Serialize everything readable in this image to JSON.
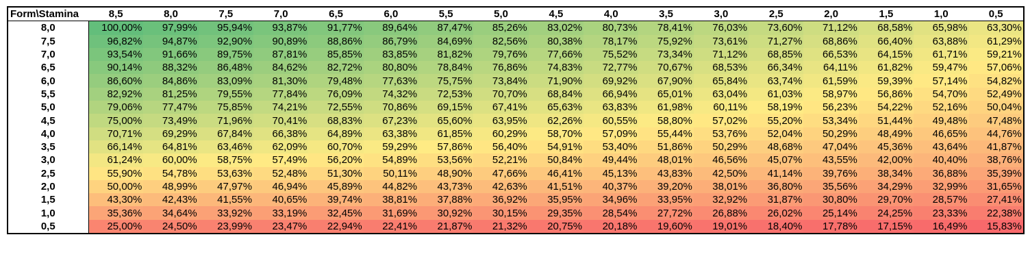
{
  "corner_label": "Form\\Stamina",
  "columns": [
    "8,5",
    "8,0",
    "7,5",
    "7,0",
    "6,5",
    "6,0",
    "5,5",
    "5,0",
    "4,5",
    "4,0",
    "3,5",
    "3,0",
    "2,5",
    "2,0",
    "1,5",
    "1,0",
    "0,5"
  ],
  "rows": [
    {
      "label": "8,0",
      "values": [
        "100,00%",
        "97,99%",
        "95,94%",
        "93,87%",
        "91,77%",
        "89,64%",
        "87,47%",
        "85,26%",
        "83,02%",
        "80,73%",
        "78,41%",
        "76,03%",
        "73,60%",
        "71,12%",
        "68,58%",
        "65,98%",
        "63,30%"
      ]
    },
    {
      "label": "7,5",
      "values": [
        "96,82%",
        "94,87%",
        "92,90%",
        "90,89%",
        "88,86%",
        "86,79%",
        "84,69%",
        "82,56%",
        "80,38%",
        "78,17%",
        "75,92%",
        "73,61%",
        "71,27%",
        "68,86%",
        "66,40%",
        "63,88%",
        "61,29%"
      ]
    },
    {
      "label": "7,0",
      "values": [
        "93,54%",
        "91,66%",
        "89,75%",
        "87,81%",
        "85,85%",
        "83,85%",
        "81,82%",
        "79,76%",
        "77,66%",
        "75,52%",
        "73,34%",
        "71,12%",
        "68,85%",
        "66,53%",
        "64,15%",
        "61,71%",
        "59,21%"
      ]
    },
    {
      "label": "6,5",
      "values": [
        "90,14%",
        "88,32%",
        "86,48%",
        "84,62%",
        "82,72%",
        "80,80%",
        "78,84%",
        "76,86%",
        "74,83%",
        "72,77%",
        "70,67%",
        "68,53%",
        "66,34%",
        "64,11%",
        "61,82%",
        "59,47%",
        "57,06%"
      ]
    },
    {
      "label": "6,0",
      "values": [
        "86,60%",
        "84,86%",
        "83,09%",
        "81,30%",
        "79,48%",
        "77,63%",
        "75,75%",
        "73,84%",
        "71,90%",
        "69,92%",
        "67,90%",
        "65,84%",
        "63,74%",
        "61,59%",
        "59,39%",
        "57,14%",
        "54,82%"
      ]
    },
    {
      "label": "5,5",
      "values": [
        "82,92%",
        "81,25%",
        "79,55%",
        "77,84%",
        "76,09%",
        "74,32%",
        "72,53%",
        "70,70%",
        "68,84%",
        "66,94%",
        "65,01%",
        "63,04%",
        "61,03%",
        "58,97%",
        "56,86%",
        "54,70%",
        "52,49%"
      ]
    },
    {
      "label": "5,0",
      "values": [
        "79,06%",
        "77,47%",
        "75,85%",
        "74,21%",
        "72,55%",
        "70,86%",
        "69,15%",
        "67,41%",
        "65,63%",
        "63,83%",
        "61,98%",
        "60,11%",
        "58,19%",
        "56,23%",
        "54,22%",
        "52,16%",
        "50,04%"
      ]
    },
    {
      "label": "4,5",
      "values": [
        "75,00%",
        "73,49%",
        "71,96%",
        "70,41%",
        "68,83%",
        "67,23%",
        "65,60%",
        "63,95%",
        "62,26%",
        "60,55%",
        "58,80%",
        "57,02%",
        "55,20%",
        "53,34%",
        "51,44%",
        "49,48%",
        "47,48%"
      ]
    },
    {
      "label": "4,0",
      "values": [
        "70,71%",
        "69,29%",
        "67,84%",
        "66,38%",
        "64,89%",
        "63,38%",
        "61,85%",
        "60,29%",
        "58,70%",
        "57,09%",
        "55,44%",
        "53,76%",
        "52,04%",
        "50,29%",
        "48,49%",
        "46,65%",
        "44,76%"
      ]
    },
    {
      "label": "3,5",
      "values": [
        "66,14%",
        "64,81%",
        "63,46%",
        "62,09%",
        "60,70%",
        "59,29%",
        "57,86%",
        "56,40%",
        "54,91%",
        "53,40%",
        "51,86%",
        "50,29%",
        "48,68%",
        "47,04%",
        "45,36%",
        "43,64%",
        "41,87%"
      ]
    },
    {
      "label": "3,0",
      "values": [
        "61,24%",
        "60,00%",
        "58,75%",
        "57,49%",
        "56,20%",
        "54,89%",
        "53,56%",
        "52,21%",
        "50,84%",
        "49,44%",
        "48,01%",
        "46,56%",
        "45,07%",
        "43,55%",
        "42,00%",
        "40,40%",
        "38,76%"
      ]
    },
    {
      "label": "2,5",
      "values": [
        "55,90%",
        "54,78%",
        "53,63%",
        "52,48%",
        "51,30%",
        "50,11%",
        "48,90%",
        "47,66%",
        "46,41%",
        "45,13%",
        "43,83%",
        "42,50%",
        "41,14%",
        "39,76%",
        "38,34%",
        "36,88%",
        "35,39%"
      ]
    },
    {
      "label": "2,0",
      "values": [
        "50,00%",
        "48,99%",
        "47,97%",
        "46,94%",
        "45,89%",
        "44,82%",
        "43,73%",
        "42,63%",
        "41,51%",
        "40,37%",
        "39,20%",
        "38,01%",
        "36,80%",
        "35,56%",
        "34,29%",
        "32,99%",
        "31,65%"
      ]
    },
    {
      "label": "1,5",
      "values": [
        "43,30%",
        "42,43%",
        "41,55%",
        "40,65%",
        "39,74%",
        "38,81%",
        "37,88%",
        "36,92%",
        "35,95%",
        "34,96%",
        "33,95%",
        "32,92%",
        "31,87%",
        "30,80%",
        "29,70%",
        "28,57%",
        "27,41%"
      ]
    },
    {
      "label": "1,0",
      "values": [
        "35,36%",
        "34,64%",
        "33,92%",
        "33,19%",
        "32,45%",
        "31,69%",
        "30,92%",
        "30,15%",
        "29,35%",
        "28,54%",
        "27,72%",
        "26,88%",
        "26,02%",
        "25,14%",
        "24,25%",
        "23,33%",
        "22,38%"
      ]
    },
    {
      "label": "0,5",
      "values": [
        "25,00%",
        "24,50%",
        "23,99%",
        "23,47%",
        "22,94%",
        "22,41%",
        "21,87%",
        "21,32%",
        "20,75%",
        "20,18%",
        "19,60%",
        "19,01%",
        "18,40%",
        "17,78%",
        "17,15%",
        "16,49%",
        "15,83%"
      ]
    }
  ],
  "color_scale": {
    "high": "#63be7b",
    "mid": "#ffeb84",
    "low": "#f8696b"
  }
}
